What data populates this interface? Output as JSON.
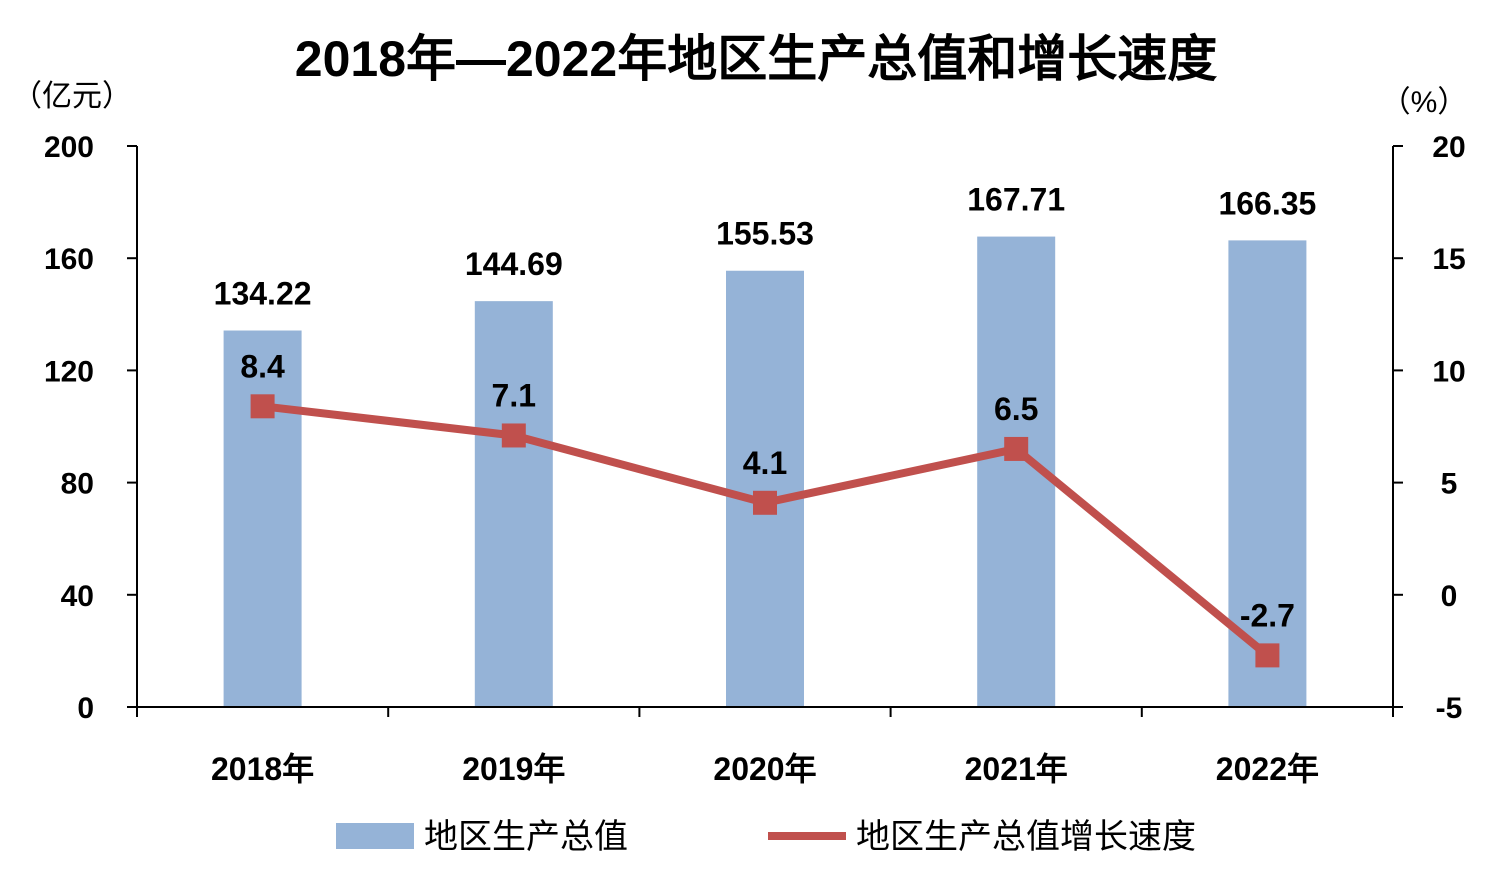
{
  "chart_data": {
    "type": "bar+line",
    "title": "2018年—2022年地区生产总值和增长速度",
    "categories": [
      "2018年",
      "2019年",
      "2020年",
      "2021年",
      "2022年"
    ],
    "y_left": {
      "unit_label": "（亿元）",
      "ylim": [
        0,
        200
      ],
      "ticks": [
        "0",
        "40",
        "80",
        "120",
        "160",
        "200"
      ]
    },
    "y_right": {
      "unit_label": "（%）",
      "ylim": [
        -5,
        20
      ],
      "ticks": [
        "-5",
        "0",
        "5",
        "10",
        "15",
        "20"
      ]
    },
    "series": [
      {
        "name": "地区生产总值",
        "type": "bar",
        "axis": "left",
        "color": "#95B3D7",
        "values": [
          134.22,
          144.69,
          155.53,
          167.71,
          166.35
        ],
        "labels": [
          "134.22",
          "144.69",
          "155.53",
          "167.71",
          "166.35"
        ]
      },
      {
        "name": "地区生产总值增长速度",
        "type": "line",
        "axis": "right",
        "color": "#C0504D",
        "values": [
          8.4,
          7.1,
          4.1,
          6.5,
          -2.7
        ],
        "labels": [
          "8.4",
          "7.1",
          "4.1",
          "6.5",
          "-2.7"
        ]
      }
    ],
    "grid": false,
    "legend_position": "bottom"
  }
}
